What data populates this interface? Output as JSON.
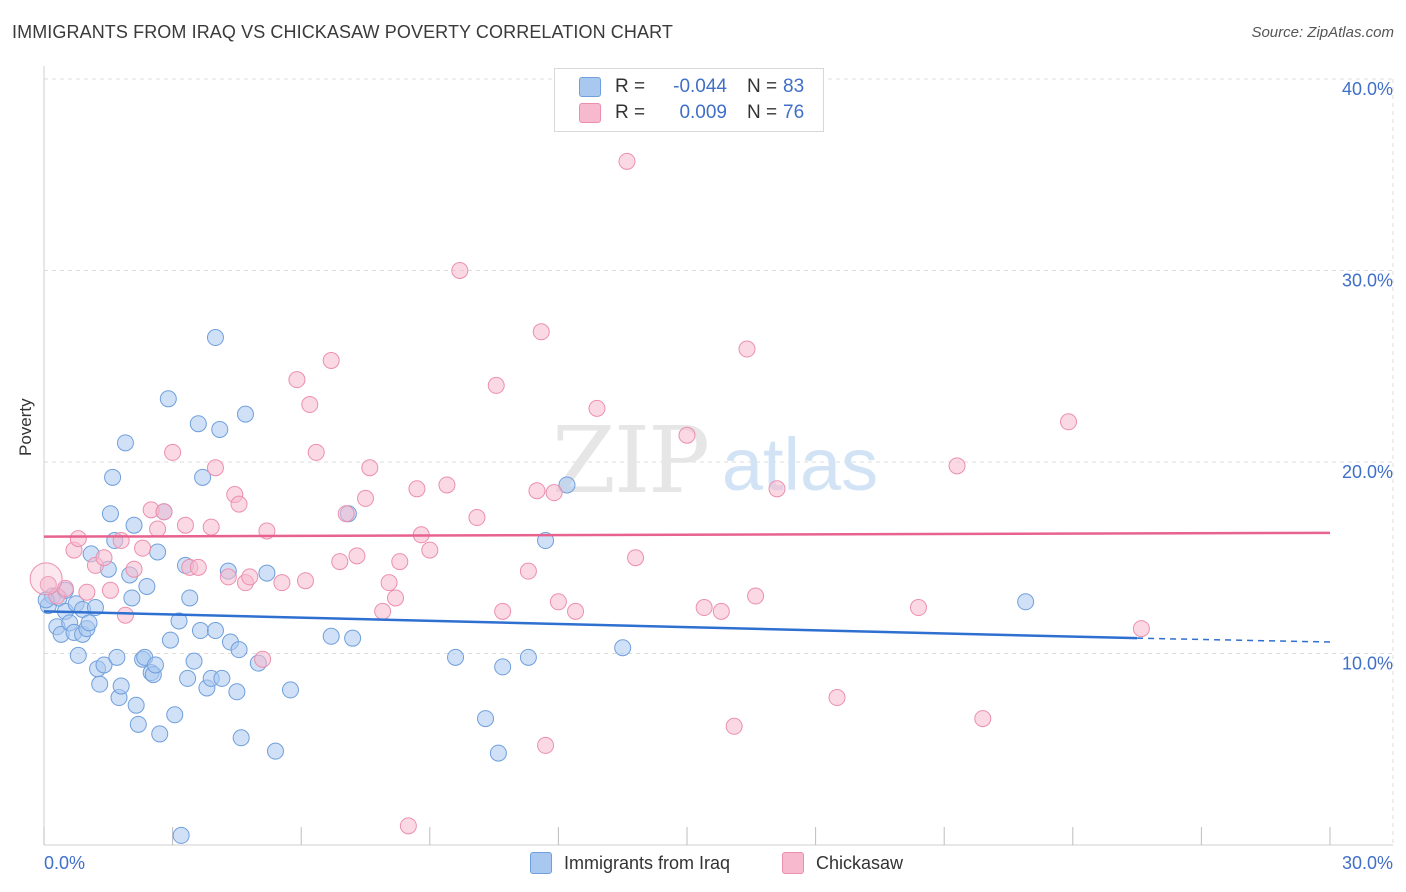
{
  "header": {
    "title": "IMMIGRANTS FROM IRAQ VS CHICKASAW POVERTY CORRELATION CHART",
    "source": "Source: ZipAtlas.com"
  },
  "watermark": {
    "zip": "ZIP",
    "atlas": "atlas"
  },
  "legend_top": {
    "rows": [
      {
        "r_label": "R =",
        "r_value": "-0.044",
        "n_label": "N =",
        "n_value": "83",
        "color": "#a9c8f0"
      },
      {
        "r_label": "R =",
        "r_value": "0.009",
        "n_label": "N =",
        "n_value": "76",
        "color": "#f7b9cd"
      }
    ]
  },
  "legend_bottom": {
    "items": [
      {
        "label": "Immigrants from Iraq",
        "color": "#a9c8f0"
      },
      {
        "label": "Chickasaw",
        "color": "#f7b9cd"
      }
    ]
  },
  "colors": {
    "blue_fill": "#a9c8f0",
    "blue_stroke": "#6f9fdc",
    "blue_line": "#2e6fd0",
    "pink_fill": "#f7b9cd",
    "pink_stroke": "#ec8fae",
    "pink_line": "#e8628e",
    "tick_text": "#3f6fc9",
    "grid": "#dddddd"
  },
  "chart_data": {
    "type": "scatter",
    "title": "IMMIGRANTS FROM IRAQ VS CHICKASAW POVERTY CORRELATION CHART",
    "xlabel": "",
    "ylabel": "Poverty",
    "xlim": [
      0,
      30
    ],
    "ylim": [
      0,
      40
    ],
    "x_ticks": [
      {
        "value": 0,
        "label": "0.0%"
      },
      {
        "value": 30,
        "label": "30.0%"
      }
    ],
    "y_ticks": [
      {
        "value": 10,
        "label": "10.0%"
      },
      {
        "value": 20,
        "label": "20.0%"
      },
      {
        "value": 30,
        "label": "30.0%"
      },
      {
        "value": 40,
        "label": "40.0%"
      }
    ],
    "series": [
      {
        "name": "Immigrants from Iraq",
        "color": "#a9c8f0",
        "trend": {
          "x": [
            0,
            25.5
          ],
          "y": [
            12.2,
            10.8
          ],
          "dashed_to": {
            "x": 30,
            "y": 10.6
          }
        },
        "points": [
          [
            0.1,
            12.5
          ],
          [
            0.2,
            13.0
          ],
          [
            0.3,
            11.4
          ],
          [
            0.35,
            12.9
          ],
          [
            0.4,
            11.0
          ],
          [
            0.5,
            12.2
          ],
          [
            0.5,
            13.3
          ],
          [
            0.6,
            11.6
          ],
          [
            0.7,
            11.1
          ],
          [
            0.75,
            12.6
          ],
          [
            0.8,
            9.9
          ],
          [
            0.9,
            12.3
          ],
          [
            0.9,
            11.0
          ],
          [
            1.0,
            11.3
          ],
          [
            1.05,
            11.6
          ],
          [
            1.1,
            15.2
          ],
          [
            1.2,
            12.4
          ],
          [
            1.25,
            9.2
          ],
          [
            1.3,
            8.4
          ],
          [
            1.4,
            9.4
          ],
          [
            1.5,
            14.4
          ],
          [
            1.55,
            17.3
          ],
          [
            1.6,
            19.2
          ],
          [
            1.65,
            15.9
          ],
          [
            1.7,
            9.8
          ],
          [
            1.75,
            7.7
          ],
          [
            1.8,
            8.3
          ],
          [
            1.9,
            21.0
          ],
          [
            2.0,
            14.1
          ],
          [
            2.05,
            12.9
          ],
          [
            2.1,
            16.7
          ],
          [
            2.15,
            7.3
          ],
          [
            2.2,
            6.3
          ],
          [
            2.3,
            9.7
          ],
          [
            2.35,
            9.8
          ],
          [
            2.4,
            13.5
          ],
          [
            2.5,
            9.0
          ],
          [
            2.55,
            8.9
          ],
          [
            2.6,
            9.4
          ],
          [
            2.65,
            15.3
          ],
          [
            2.7,
            5.8
          ],
          [
            2.8,
            17.4
          ],
          [
            2.9,
            23.3
          ],
          [
            2.95,
            10.7
          ],
          [
            3.05,
            6.8
          ],
          [
            3.15,
            11.7
          ],
          [
            3.2,
            0.5
          ],
          [
            3.3,
            14.6
          ],
          [
            3.35,
            8.7
          ],
          [
            3.4,
            12.9
          ],
          [
            3.5,
            9.6
          ],
          [
            3.6,
            22.0
          ],
          [
            3.65,
            11.2
          ],
          [
            3.7,
            19.2
          ],
          [
            3.8,
            8.2
          ],
          [
            3.9,
            8.7
          ],
          [
            4.0,
            11.2
          ],
          [
            4.0,
            26.5
          ],
          [
            4.1,
            21.7
          ],
          [
            4.15,
            8.7
          ],
          [
            4.3,
            14.3
          ],
          [
            4.35,
            10.6
          ],
          [
            4.5,
            8.0
          ],
          [
            4.55,
            10.2
          ],
          [
            4.6,
            5.6
          ],
          [
            4.7,
            22.5
          ],
          [
            5.0,
            9.5
          ],
          [
            5.2,
            14.2
          ],
          [
            5.4,
            4.9
          ],
          [
            5.75,
            8.1
          ],
          [
            6.7,
            10.9
          ],
          [
            7.1,
            17.3
          ],
          [
            7.2,
            10.8
          ],
          [
            9.6,
            9.8
          ],
          [
            10.3,
            6.6
          ],
          [
            10.6,
            4.8
          ],
          [
            10.7,
            9.3
          ],
          [
            11.3,
            9.8
          ],
          [
            11.7,
            15.9
          ],
          [
            12.2,
            18.8
          ],
          [
            13.5,
            10.3
          ],
          [
            22.9,
            12.7
          ],
          [
            0.05,
            12.8
          ]
        ]
      },
      {
        "name": "Chickasaw",
        "color": "#f7b9cd",
        "trend": {
          "x": [
            0,
            30
          ],
          "y": [
            16.1,
            16.3
          ]
        },
        "points": [
          [
            0.1,
            13.6
          ],
          [
            0.3,
            13.0
          ],
          [
            0.5,
            13.4
          ],
          [
            0.7,
            15.4
          ],
          [
            0.8,
            16.0
          ],
          [
            1.0,
            13.2
          ],
          [
            1.2,
            14.6
          ],
          [
            1.4,
            15.0
          ],
          [
            1.55,
            13.3
          ],
          [
            1.8,
            15.9
          ],
          [
            1.9,
            12.0
          ],
          [
            2.1,
            14.4
          ],
          [
            2.3,
            15.5
          ],
          [
            2.5,
            17.5
          ],
          [
            2.65,
            16.5
          ],
          [
            2.8,
            17.4
          ],
          [
            3.0,
            20.5
          ],
          [
            3.3,
            16.7
          ],
          [
            3.4,
            14.5
          ],
          [
            3.6,
            14.5
          ],
          [
            3.9,
            16.6
          ],
          [
            4.0,
            19.7
          ],
          [
            4.3,
            14.0
          ],
          [
            4.45,
            18.3
          ],
          [
            4.55,
            17.8
          ],
          [
            4.7,
            13.7
          ],
          [
            4.8,
            14.0
          ],
          [
            5.1,
            9.7
          ],
          [
            5.2,
            16.4
          ],
          [
            5.55,
            13.7
          ],
          [
            5.9,
            24.3
          ],
          [
            6.1,
            13.8
          ],
          [
            6.2,
            23.0
          ],
          [
            6.35,
            20.5
          ],
          [
            6.7,
            25.3
          ],
          [
            6.9,
            14.8
          ],
          [
            7.05,
            17.3
          ],
          [
            7.3,
            15.1
          ],
          [
            7.5,
            18.1
          ],
          [
            7.6,
            19.7
          ],
          [
            7.9,
            12.2
          ],
          [
            8.05,
            13.7
          ],
          [
            8.2,
            12.9
          ],
          [
            8.3,
            14.8
          ],
          [
            8.5,
            1.0
          ],
          [
            8.7,
            18.6
          ],
          [
            8.8,
            16.2
          ],
          [
            9.0,
            15.4
          ],
          [
            9.4,
            18.8
          ],
          [
            9.7,
            30.0
          ],
          [
            10.1,
            17.1
          ],
          [
            10.55,
            24.0
          ],
          [
            10.7,
            12.2
          ],
          [
            11.3,
            14.3
          ],
          [
            11.5,
            18.5
          ],
          [
            11.6,
            26.8
          ],
          [
            11.7,
            5.2
          ],
          [
            11.9,
            18.4
          ],
          [
            12.0,
            12.7
          ],
          [
            12.4,
            12.2
          ],
          [
            12.9,
            22.8
          ],
          [
            13.6,
            35.7
          ],
          [
            13.8,
            15.0
          ],
          [
            15.0,
            21.4
          ],
          [
            15.4,
            12.4
          ],
          [
            15.8,
            12.2
          ],
          [
            16.1,
            6.2
          ],
          [
            16.4,
            25.9
          ],
          [
            16.6,
            13.0
          ],
          [
            17.1,
            18.6
          ],
          [
            18.5,
            7.7
          ],
          [
            20.4,
            12.4
          ],
          [
            21.3,
            19.8
          ],
          [
            21.9,
            6.6
          ],
          [
            23.9,
            22.1
          ],
          [
            25.6,
            11.3
          ]
        ]
      }
    ]
  }
}
